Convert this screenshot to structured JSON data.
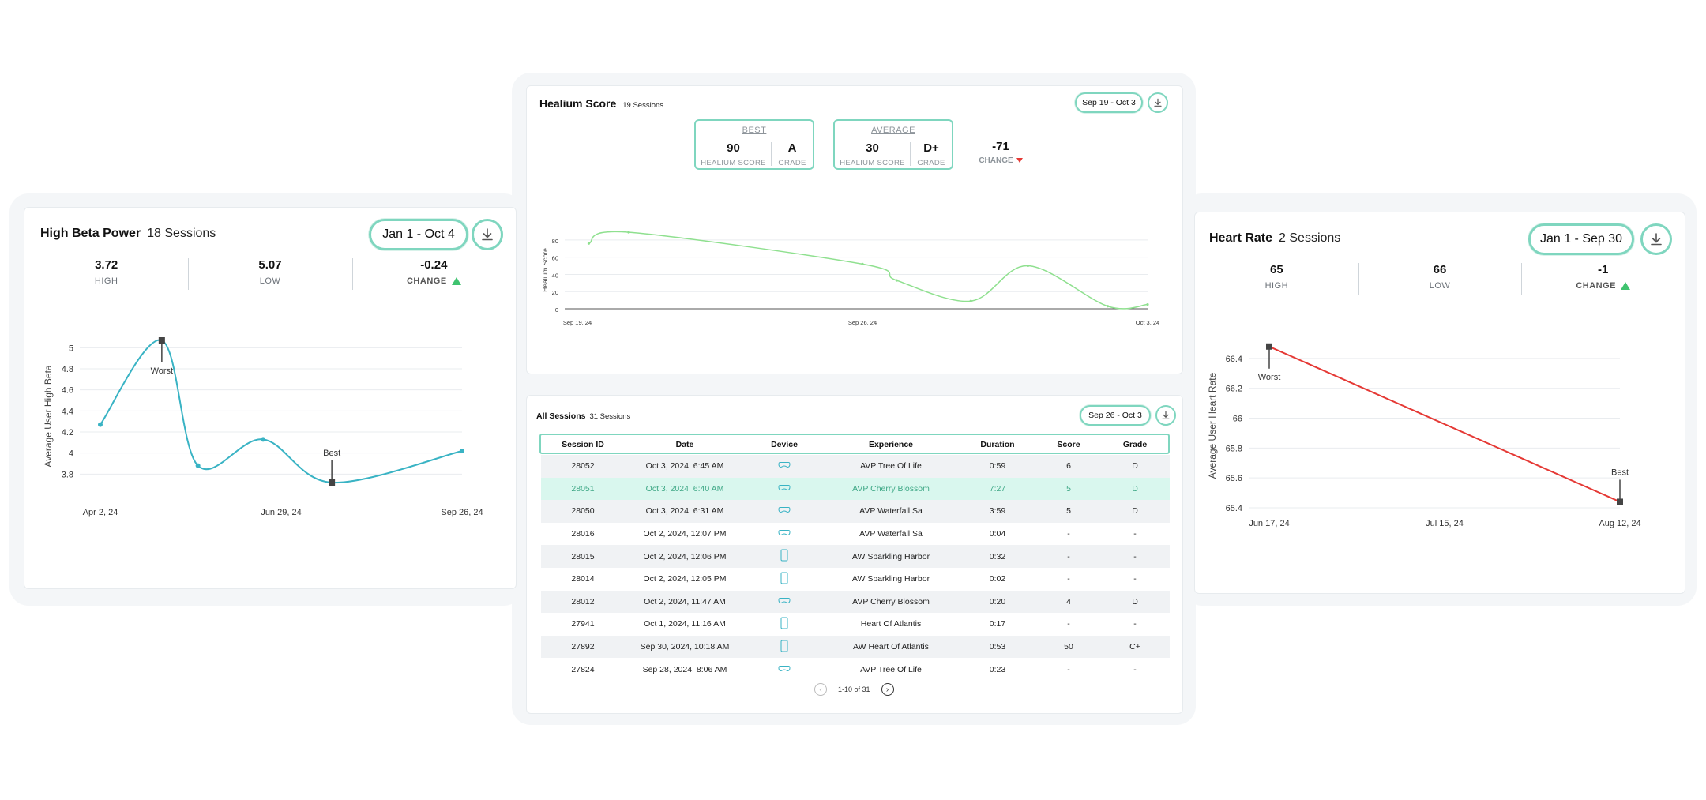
{
  "colors": {
    "accent": "#7fd6bf",
    "teal_line": "#39b3c4",
    "green_line": "#8fe08f",
    "red_line": "#e53935",
    "up": "#3fc36f",
    "down": "#e53935"
  },
  "high_beta": {
    "title": "High Beta Power",
    "sessions": "18 Sessions",
    "range": "Jan 1 - Oct 4",
    "download_icon": "download-icon",
    "stats": [
      {
        "value": "3.72",
        "label": "HIGH"
      },
      {
        "value": "5.07",
        "label": "LOW"
      },
      {
        "value": "-0.24",
        "label": "CHANGE"
      }
    ]
  },
  "healium": {
    "title": "Healium Score",
    "sessions": "19 Sessions",
    "range": "Sep 19 - Oct 3",
    "best": {
      "header": "BEST",
      "score": "90",
      "score_label": "HEALIUM SCORE",
      "grade": "A",
      "grade_label": "GRADE"
    },
    "average": {
      "header": "AVERAGE",
      "score": "30",
      "score_label": "HEALIUM SCORE",
      "grade": "D+",
      "grade_label": "GRADE"
    },
    "change": {
      "value": "-71",
      "label": "CHANGE"
    }
  },
  "heart_rate": {
    "title": "Heart Rate",
    "sessions": "2 Sessions",
    "range": "Jan 1 - Sep 30",
    "stats": [
      {
        "value": "65",
        "label": "HIGH"
      },
      {
        "value": "66",
        "label": "LOW"
      },
      {
        "value": "-1",
        "label": "CHANGE"
      }
    ]
  },
  "all_sessions": {
    "title": "All Sessions",
    "sessions": "31 Sessions",
    "range": "Sep 26 - Oct 3",
    "columns": [
      "Session ID",
      "Date",
      "Device",
      "Experience",
      "Duration",
      "Score",
      "Grade"
    ],
    "rows": [
      {
        "id": "28052",
        "date": "Oct 3, 2024, 6:45 AM",
        "device": "headset",
        "experience": "AVP Tree Of Life",
        "duration": "0:59",
        "score": "6",
        "grade": "D"
      },
      {
        "id": "28051",
        "date": "Oct 3, 2024, 6:40 AM",
        "device": "headset",
        "experience": "AVP Cherry Blossom",
        "duration": "7:27",
        "score": "5",
        "grade": "D"
      },
      {
        "id": "28050",
        "date": "Oct 3, 2024, 6:31 AM",
        "device": "headset",
        "experience": "AVP Waterfall Sa",
        "duration": "3:59",
        "score": "5",
        "grade": "D"
      },
      {
        "id": "28016",
        "date": "Oct 2, 2024, 12:07 PM",
        "device": "headset",
        "experience": "AVP Waterfall Sa",
        "duration": "0:04",
        "score": "-",
        "grade": "-"
      },
      {
        "id": "28015",
        "date": "Oct 2, 2024, 12:06 PM",
        "device": "phone",
        "experience": "AW Sparkling Harbor",
        "duration": "0:32",
        "score": "-",
        "grade": "-"
      },
      {
        "id": "28014",
        "date": "Oct 2, 2024, 12:05 PM",
        "device": "phone",
        "experience": "AW Sparkling Harbor",
        "duration": "0:02",
        "score": "-",
        "grade": "-"
      },
      {
        "id": "28012",
        "date": "Oct 2, 2024, 11:47 AM",
        "device": "headset",
        "experience": "AVP Cherry Blossom",
        "duration": "0:20",
        "score": "4",
        "grade": "D"
      },
      {
        "id": "27941",
        "date": "Oct 1, 2024, 11:16 AM",
        "device": "phone",
        "experience": "Heart Of Atlantis",
        "duration": "0:17",
        "score": "-",
        "grade": "-"
      },
      {
        "id": "27892",
        "date": "Sep 30, 2024, 10:18 AM",
        "device": "phone",
        "experience": "AW Heart Of Atlantis",
        "duration": "0:53",
        "score": "50",
        "grade": "C+"
      },
      {
        "id": "27824",
        "date": "Sep 28, 2024, 8:06 AM",
        "device": "headset",
        "experience": "AVP Tree Of Life",
        "duration": "0:23",
        "score": "-",
        "grade": "-"
      }
    ],
    "highlight_index": 1,
    "pagination": "1-10 of 31"
  },
  "chart_data": [
    {
      "type": "line",
      "id": "high_beta",
      "ylabel": "Average User High Beta",
      "ylim": [
        3.6,
        5.1
      ],
      "yticks": [
        "5",
        "4.8",
        "4.6",
        "4.4",
        "4.2",
        "4",
        "3.8"
      ],
      "xticks": [
        "Apr  2, 24",
        "Jun 29, 24",
        "Sep 26, 24"
      ],
      "points": [
        {
          "x": 0,
          "y": 4.27
        },
        {
          "x": 0.17,
          "y": 5.07
        },
        {
          "x": 0.27,
          "y": 3.88
        },
        {
          "x": 0.45,
          "y": 4.13
        },
        {
          "x": 0.64,
          "y": 3.72
        },
        {
          "x": 1,
          "y": 4.02
        }
      ],
      "annotations": [
        {
          "label": "Worst",
          "index": 1
        },
        {
          "label": "Best",
          "index": 4
        }
      ]
    },
    {
      "type": "line",
      "id": "healium",
      "ylabel": "Healium Score",
      "ylim": [
        0,
        90
      ],
      "yticks": [
        "80",
        "60",
        "40",
        "20",
        "0"
      ],
      "xticks": [
        "Sep 19, 24",
        "Sep 26, 24",
        "Oct  3, 24"
      ],
      "points": [
        {
          "x": 0.02,
          "y": 76
        },
        {
          "x": 0.09,
          "y": 89
        },
        {
          "x": 0.5,
          "y": 52
        },
        {
          "x": 0.56,
          "y": 33
        },
        {
          "x": 0.69,
          "y": 9
        },
        {
          "x": 0.79,
          "y": 50
        },
        {
          "x": 0.93,
          "y": 3
        },
        {
          "x": 1,
          "y": 5
        }
      ]
    },
    {
      "type": "line",
      "id": "heart_rate",
      "ylabel": "Average User Heart Rate",
      "ylim": [
        65.4,
        66.5
      ],
      "yticks": [
        "66.4",
        "66.2",
        "66",
        "65.8",
        "65.6",
        "65.4"
      ],
      "xticks": [
        "Jun 17, 24",
        "Jul 15, 24",
        "Aug 12, 24"
      ],
      "points": [
        {
          "x": 0,
          "y": 66.48
        },
        {
          "x": 1,
          "y": 65.44
        }
      ],
      "annotations": [
        {
          "label": "Worst",
          "index": 0
        },
        {
          "label": "Best",
          "index": 1
        }
      ]
    }
  ]
}
